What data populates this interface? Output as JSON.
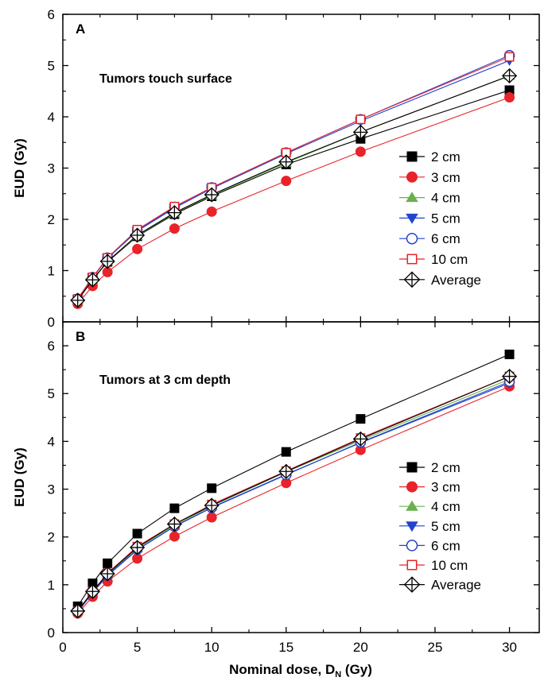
{
  "chart_data": [
    {
      "type": "line",
      "panel_label": "A",
      "annotation": "Tumors touch surface",
      "ylabel": "EUD (Gy)",
      "xlim": [
        0,
        32
      ],
      "ylim": [
        0,
        6
      ],
      "yticks": [
        0,
        1,
        2,
        3,
        4,
        5,
        6
      ],
      "x": [
        1,
        2,
        3,
        5,
        7.5,
        10,
        15,
        20,
        30
      ],
      "legend_position": "right",
      "series": [
        {
          "name": "2 cm",
          "marker": "square-filled",
          "color": "#000000",
          "values": [
            0.42,
            0.82,
            1.17,
            1.67,
            2.1,
            2.45,
            3.07,
            3.57,
            4.52
          ]
        },
        {
          "name": "3 cm",
          "marker": "circle-filled",
          "color": "#e8232a",
          "values": [
            0.35,
            0.7,
            0.97,
            1.42,
            1.82,
            2.15,
            2.75,
            3.32,
            4.38
          ]
        },
        {
          "name": "4 cm",
          "marker": "triangle-up-filled",
          "color": "#6ab04c",
          "values": [
            0.42,
            0.82,
            1.18,
            1.68,
            2.12,
            2.47,
            3.1,
            3.7,
            4.8
          ]
        },
        {
          "name": "5 cm",
          "marker": "triangle-down-filled",
          "color": "#2244cc",
          "values": [
            0.44,
            0.86,
            1.24,
            1.77,
            2.22,
            2.6,
            3.28,
            3.92,
            5.1
          ]
        },
        {
          "name": "6 cm",
          "marker": "circle-open",
          "color": "#2244cc",
          "values": [
            0.45,
            0.87,
            1.25,
            1.78,
            2.24,
            2.62,
            3.3,
            3.95,
            5.2
          ]
        },
        {
          "name": "10 cm",
          "marker": "square-open",
          "color": "#e8232a",
          "values": [
            0.45,
            0.87,
            1.25,
            1.8,
            2.25,
            2.62,
            3.3,
            3.95,
            5.17
          ]
        },
        {
          "name": "Average",
          "marker": "diamond-cross",
          "color": "#000000",
          "values": [
            0.42,
            0.82,
            1.18,
            1.69,
            2.13,
            2.48,
            3.12,
            3.7,
            4.8
          ]
        }
      ]
    },
    {
      "type": "line",
      "panel_label": "B",
      "annotation": "Tumors at 3 cm depth",
      "ylabel": "EUD (Gy)",
      "xlabel_main": "Nominal dose, D",
      "xlabel_sub": "N",
      "xlabel_unit": " (Gy)",
      "xlim": [
        0,
        32
      ],
      "ylim": [
        0,
        6.5
      ],
      "xticks": [
        0,
        5,
        10,
        15,
        20,
        25,
        30
      ],
      "yticks": [
        0,
        1,
        2,
        3,
        4,
        5,
        6
      ],
      "x": [
        1,
        2,
        3,
        5,
        7.5,
        10,
        15,
        20,
        30
      ],
      "legend_position": "right",
      "series": [
        {
          "name": "2 cm",
          "marker": "square-filled",
          "color": "#000000",
          "values": [
            0.55,
            1.03,
            1.45,
            2.07,
            2.6,
            3.02,
            3.78,
            4.47,
            5.82
          ]
        },
        {
          "name": "3 cm",
          "marker": "circle-filled",
          "color": "#e8232a",
          "values": [
            0.4,
            0.75,
            1.07,
            1.55,
            2.01,
            2.41,
            3.13,
            3.82,
            5.15
          ]
        },
        {
          "name": "4 cm",
          "marker": "triangle-up-filled",
          "color": "#6ab04c",
          "values": [
            0.45,
            0.86,
            1.22,
            1.77,
            2.24,
            2.65,
            3.36,
            4.02,
            5.3
          ]
        },
        {
          "name": "5 cm",
          "marker": "triangle-down-filled",
          "color": "#2244cc",
          "values": [
            0.43,
            0.83,
            1.19,
            1.73,
            2.22,
            2.62,
            3.31,
            3.97,
            5.22
          ]
        },
        {
          "name": "6 cm",
          "marker": "circle-open",
          "color": "#2244cc",
          "values": [
            0.44,
            0.84,
            1.2,
            1.74,
            2.22,
            2.61,
            3.3,
            3.98,
            5.25
          ]
        },
        {
          "name": "10 cm",
          "marker": "square-open",
          "color": "#e8232a",
          "values": [
            0.45,
            0.86,
            1.24,
            1.8,
            2.27,
            2.68,
            3.38,
            4.07,
            5.36
          ]
        },
        {
          "name": "Average",
          "marker": "diamond-cross",
          "color": "#000000",
          "values": [
            0.45,
            0.86,
            1.23,
            1.78,
            2.27,
            2.66,
            3.37,
            4.05,
            5.36
          ]
        }
      ]
    }
  ]
}
